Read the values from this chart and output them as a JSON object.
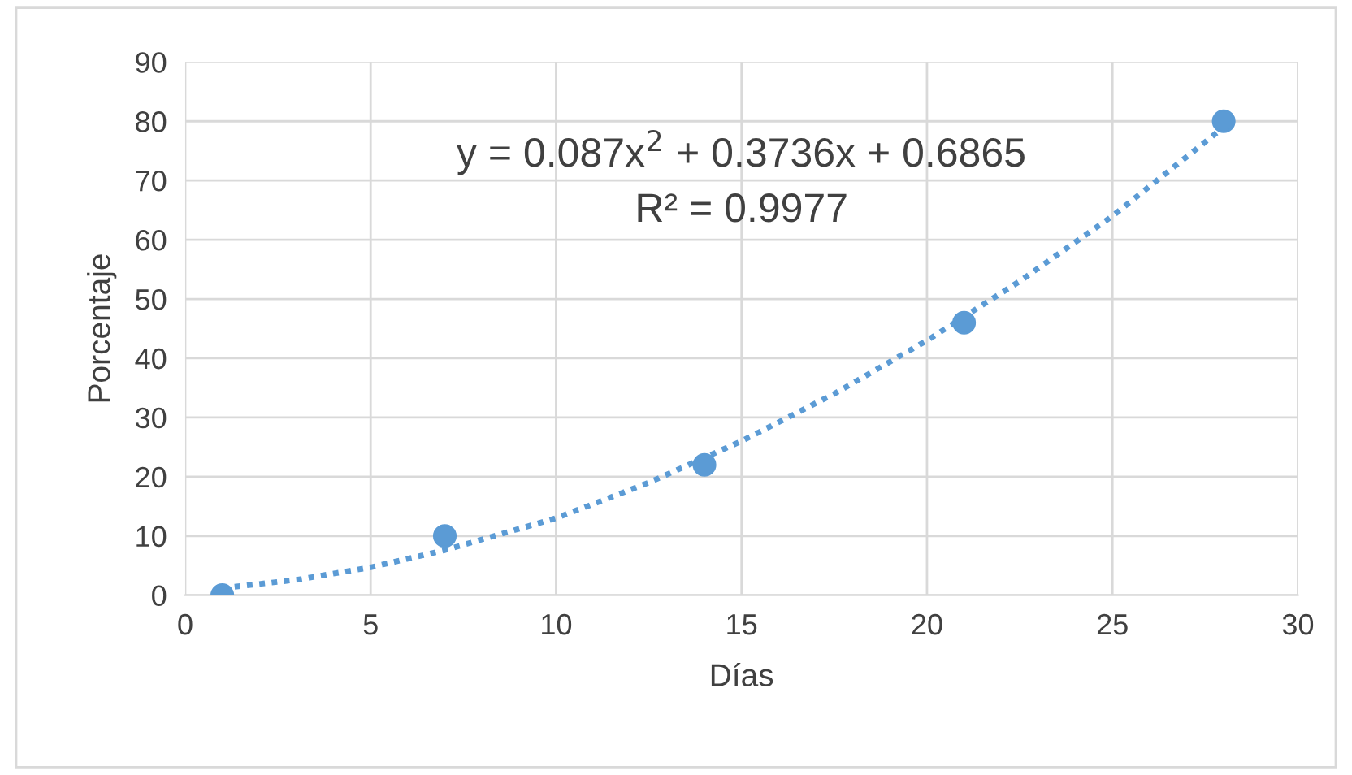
{
  "chart_data": {
    "type": "scatter",
    "xlabel": "Días",
    "ylabel": "Porcentaje",
    "xlim": [
      0,
      30
    ],
    "xticks": [
      0,
      5,
      10,
      15,
      20,
      25,
      30
    ],
    "ylim": [
      0,
      90
    ],
    "yticks": [
      0,
      10,
      20,
      30,
      40,
      50,
      60,
      70,
      80,
      90
    ],
    "grid": true,
    "legend": false,
    "series": [
      {
        "color": "#5b9bd5",
        "marker": "circle",
        "x": [
          1,
          7,
          14,
          21,
          28
        ],
        "values": [
          0,
          10,
          22,
          46,
          80
        ]
      },
      {
        "type": "line",
        "color": "#5b9bd5",
        "line_style": "dotted",
        "marker": "none",
        "x": [
          1,
          3,
          5,
          7,
          10,
          12.5,
          15,
          17.5,
          20,
          22.5,
          25,
          28
        ],
        "values": [
          1.2,
          2.6,
          4.7,
          7.6,
          13,
          19,
          26,
          34,
          43,
          53,
          64,
          79
        ]
      }
    ],
    "annotations": [
      "y = 0.087x$^{2}$ + 0.3736x + 0.6865",
      "R² = 0.9977"
    ]
  }
}
